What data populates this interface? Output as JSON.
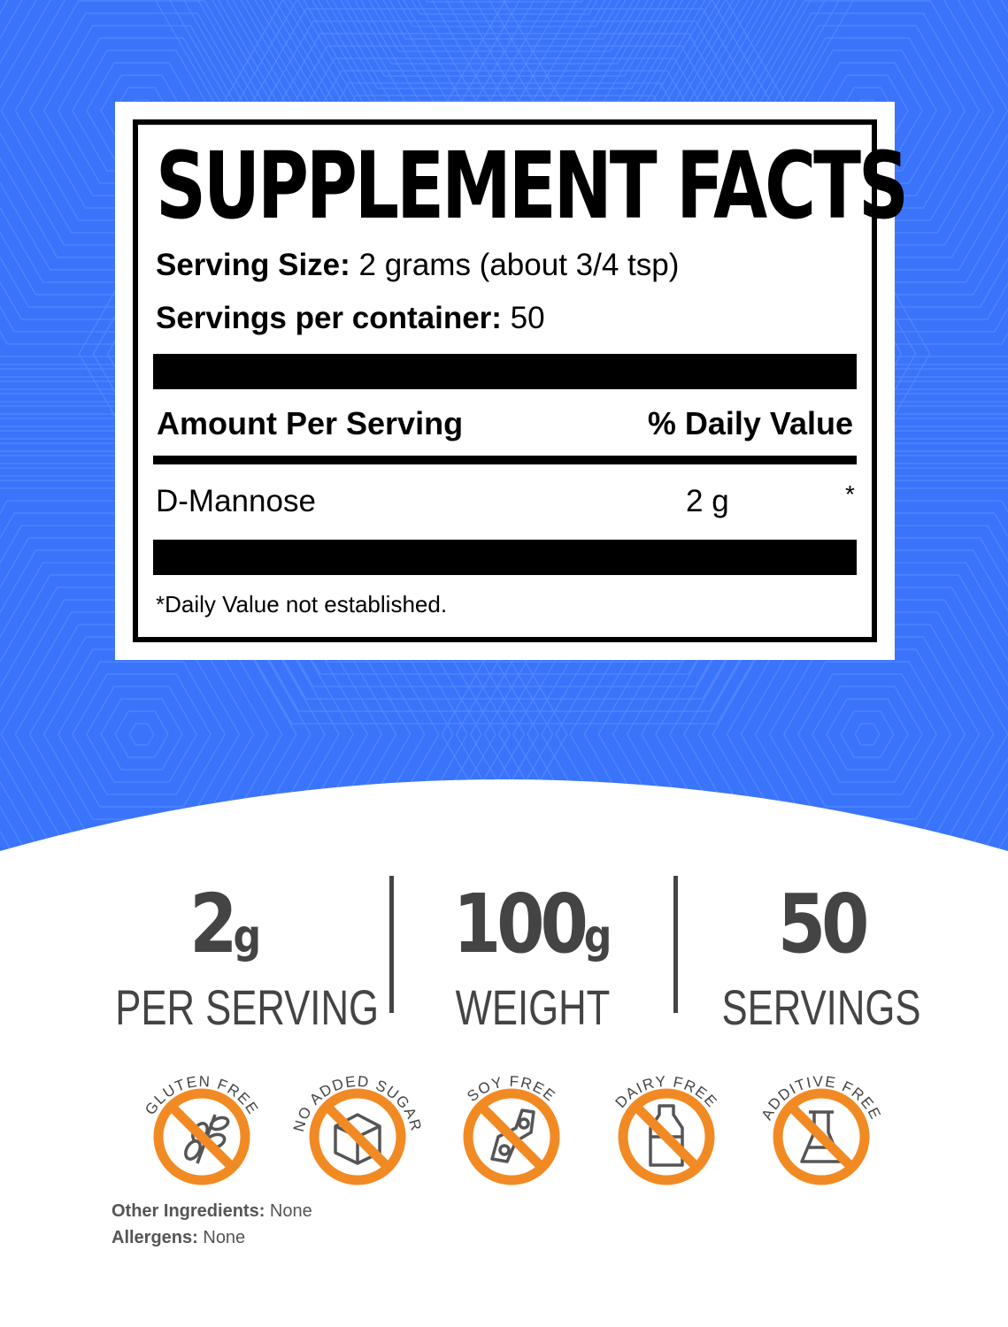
{
  "colors": {
    "background_blue": "#3a74fb",
    "badge_orange": "#f28a24",
    "text_gray": "#444444"
  },
  "facts": {
    "title": "SUPPLEMENT FACTS",
    "serving_size_label": "Serving Size:",
    "serving_size_value": " 2 grams (about 3/4 tsp)",
    "servings_label": "Servings per container:",
    "servings_value": " 50",
    "amount_header": "Amount Per Serving",
    "dv_header": "% Daily Value",
    "rows": [
      {
        "name": "D-Mannose",
        "amount": "2 g",
        "dv": "*"
      }
    ],
    "footnote": "*Daily Value not established."
  },
  "stats": [
    {
      "number": "2",
      "unit": "g",
      "label": "PER SERVING"
    },
    {
      "number": "100",
      "unit": "g",
      "label": "WEIGHT"
    },
    {
      "number": "50",
      "unit": "",
      "label": "SERVINGS"
    }
  ],
  "badges": [
    {
      "label": "GLUTEN FREE",
      "icon": "wheat-icon"
    },
    {
      "label": "NO ADDED SUGAR",
      "icon": "sugar-cube-icon"
    },
    {
      "label": "SOY FREE",
      "icon": "soybean-icon"
    },
    {
      "label": "DAIRY FREE",
      "icon": "milk-bottle-icon"
    },
    {
      "label": "ADDITIVE FREE",
      "icon": "flask-icon"
    }
  ],
  "footer": {
    "other_label": "Other Ingredients:",
    "other_value": " None",
    "allergens_label": "Allergens:",
    "allergens_value": " None"
  }
}
